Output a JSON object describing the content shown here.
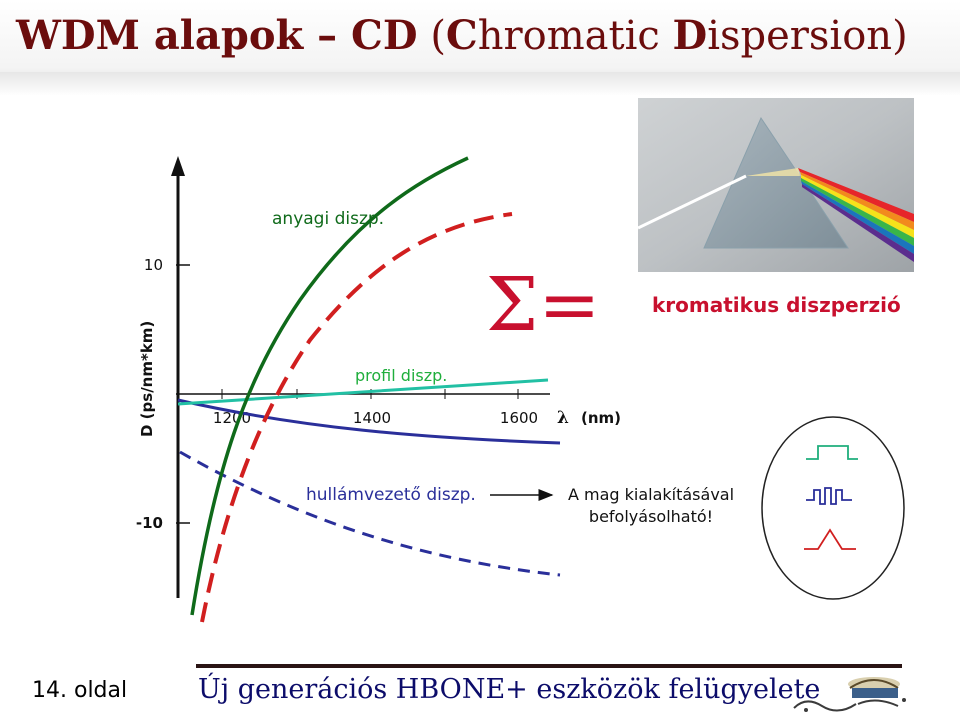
{
  "title": {
    "part1": "WDM alapok – CD",
    "part2": "(",
    "part3": "C",
    "part4": "hromatic ",
    "part5": "D",
    "part6": "ispersion)"
  },
  "axes": {
    "ylabel": "D  (ps/nm*km)",
    "xunit": "(nm)",
    "lambda_symbol": "λ",
    "yticks": [
      "10",
      "-10"
    ],
    "xticks": [
      "1200",
      "1400",
      "1600"
    ]
  },
  "labels": {
    "material": "anyagi diszp.",
    "profile": "profil diszp.",
    "waveguide": "hullámvezető diszp.",
    "sum": "Σ=",
    "chromatic": "kromatikus diszperzió",
    "note_line1": "A mag kialakításával",
    "note_line2": "befolyásolható!"
  },
  "colors": {
    "title": "#6b0d0d",
    "material": "#0f6a1a",
    "profile": "#22c0a4",
    "waveguide": "#2a2f9a",
    "total": "#d11f1f",
    "chromatic": "#c8102e",
    "sum": "#c8102e"
  },
  "footer": {
    "page": "14. oldal",
    "text": "Új generációs HBONE+ eszközök felügyelete"
  },
  "icons": {
    "prism": "prism-photo",
    "pulse_top": "square-pulse-icon",
    "pulse_mid": "modulated-pulse-icon",
    "pulse_bottom": "triangle-pulse-icon",
    "logo": "uj-magyarorszag-logo"
  }
}
